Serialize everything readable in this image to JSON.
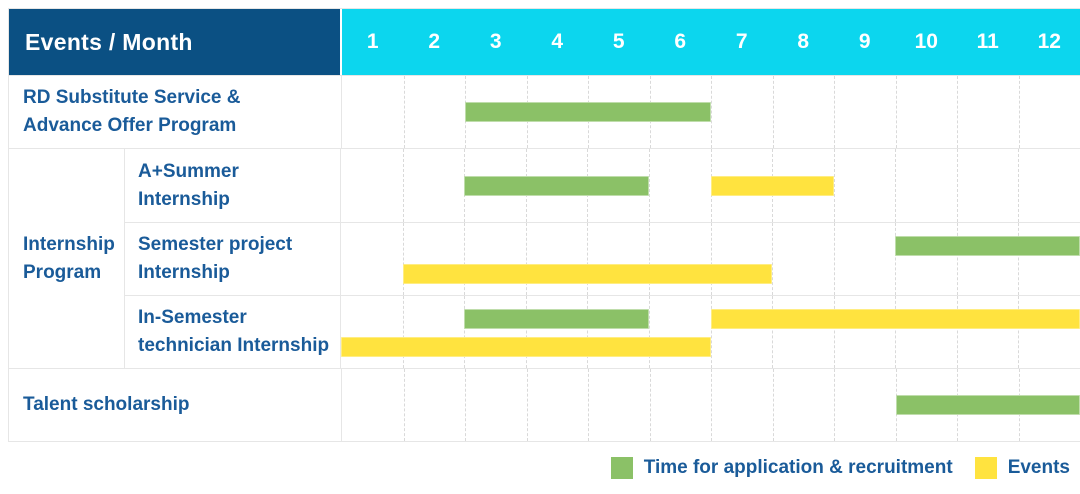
{
  "header": {
    "events_month_label": "Events / Month",
    "months": [
      "1",
      "2",
      "3",
      "4",
      "5",
      "6",
      "7",
      "8",
      "9",
      "10",
      "11",
      "12"
    ]
  },
  "colors": {
    "navy": "#0b5083",
    "cyan": "#0cd6ee",
    "green": "#8bc167",
    "yellow": "#ffe33f",
    "text_blue": "#1a5b99",
    "grid": "#e6e6e6"
  },
  "chart_data": {
    "type": "bar",
    "subtype": "gantt",
    "x_unit": "month",
    "x_range": [
      1,
      12
    ],
    "grid": "dashed-vertical-month-lines",
    "legend_position": "bottom-right",
    "group": {
      "label": "Internship Program",
      "label_lines": [
        "Internship",
        "Program"
      ],
      "row_indexes": [
        1,
        2,
        3
      ]
    },
    "rows": [
      {
        "label": "RD Substitute Service & Advance Offer Program",
        "label_lines": [
          "RD Substitute Service &",
          "Advance Offer Program"
        ],
        "group": null,
        "bars": [
          {
            "kind": "application",
            "start": 3,
            "end": 6,
            "track": "middle"
          }
        ]
      },
      {
        "label": "A+Summer Internship",
        "label_lines": [
          "A+Summer",
          "Internship"
        ],
        "group": "Internship Program",
        "bars": [
          {
            "kind": "application",
            "start": 3,
            "end": 5,
            "track": "middle"
          },
          {
            "kind": "event",
            "start": 7,
            "end": 8,
            "track": "middle"
          }
        ]
      },
      {
        "label": "Semester project Internship",
        "label_lines": [
          "Semester project",
          "Internship"
        ],
        "group": "Internship Program",
        "bars": [
          {
            "kind": "application",
            "start": 10,
            "end": 12,
            "track": "top"
          },
          {
            "kind": "event",
            "start": 2,
            "end": 7,
            "track": "bottom"
          }
        ]
      },
      {
        "label": "In-Semester technician Internship",
        "label_lines": [
          "In-Semester",
          "technician Internship"
        ],
        "group": "Internship Program",
        "bars": [
          {
            "kind": "application",
            "start": 3,
            "end": 5,
            "track": "top"
          },
          {
            "kind": "event",
            "start": 7,
            "end": 12,
            "track": "top"
          },
          {
            "kind": "event",
            "start": 1,
            "end": 6,
            "track": "bottom"
          }
        ]
      },
      {
        "label": "Talent scholarship",
        "label_lines": [
          "Talent scholarship"
        ],
        "group": null,
        "bars": [
          {
            "kind": "application",
            "start": 10,
            "end": 12,
            "track": "middle"
          }
        ]
      }
    ],
    "legend": [
      {
        "kind": "application",
        "color": "#8bc167",
        "label": "Time for application & recruitment"
      },
      {
        "kind": "event",
        "color": "#ffe33f",
        "label": "Events"
      }
    ]
  }
}
